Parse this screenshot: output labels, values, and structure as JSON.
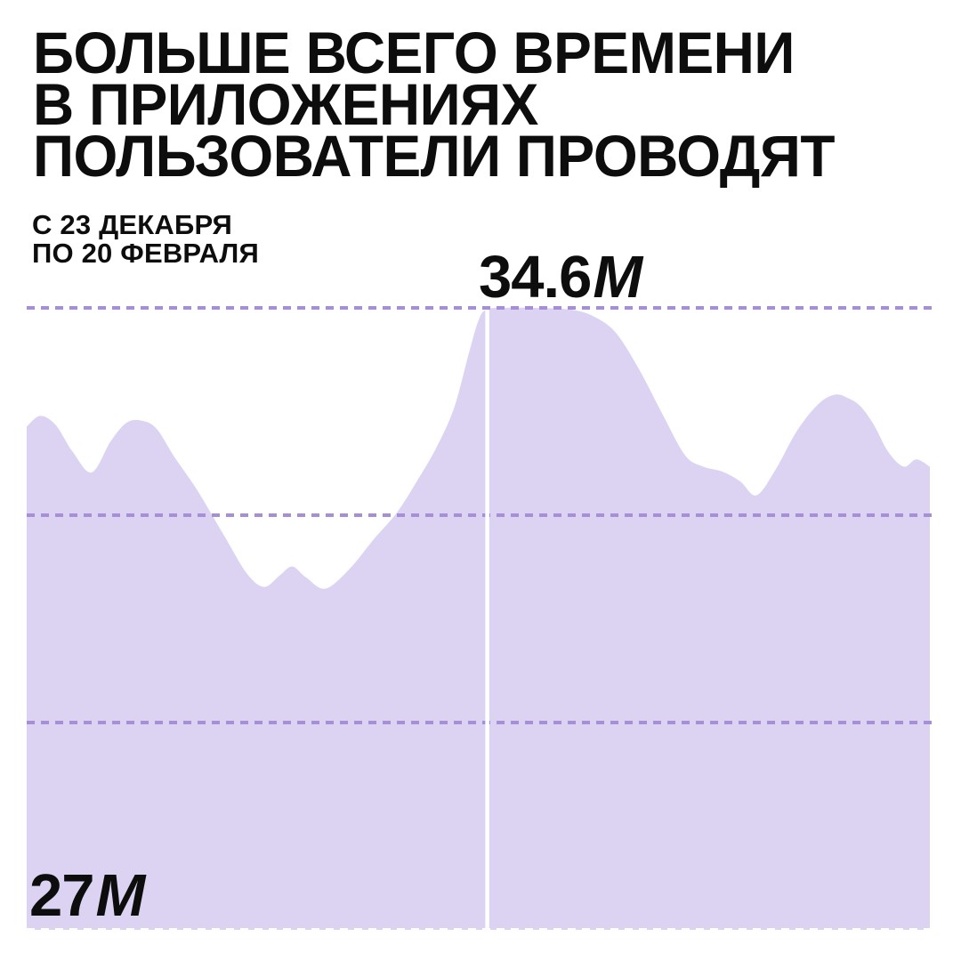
{
  "header": {
    "title_lines": [
      "БОЛЬШЕ ВСЕГО ВРЕМЕНИ",
      "В ПРИЛОЖЕНИЯХ",
      "ПОЛЬЗОВАТЕЛИ ПРОВОДЯТ"
    ],
    "subtitle_lines": [
      "С 23 ДЕКАБРЯ",
      "ПО 20 ФЕВРАЛЯ"
    ]
  },
  "chart_data": {
    "type": "area",
    "title": "БОЛЬШЕ ВСЕГО ВРЕМЕНИ В ПРИЛОЖЕНИЯХ ПОЛЬЗОВАТЕЛИ ПРОВОДЯТ",
    "period_text": "С 23 ДЕКАБРЯ ПО 20 ФЕВРАЛЯ",
    "xlabel": "",
    "ylabel": "",
    "unit": "М",
    "ylim": [
      27,
      34.6
    ],
    "grid": "dashed-horizontal",
    "gridline_values": [
      34.6,
      32.07,
      29.53,
      27
    ],
    "peak_annotation": {
      "value": "34.6",
      "unit": "М",
      "numeric": 34.6,
      "x_pct": 51.0
    },
    "min_annotation": {
      "value": "27",
      "unit": "М",
      "numeric": 27
    },
    "series": [
      {
        "x_pct": [
          0,
          1.5,
          3.2,
          5.1,
          7.2,
          9.3,
          11.1,
          12.8,
          14.4,
          16.4,
          18.9,
          21.9,
          24.4,
          26.3,
          28.0,
          29.4,
          30.9,
          33.1,
          35.9,
          38.4,
          41.0,
          43.3,
          45.3,
          47.3,
          48.9,
          50.0,
          50.9,
          52.7,
          56.2,
          60.1,
          62.7,
          65.2,
          67.8,
          70.4,
          72.9,
          74.9,
          77.0,
          79.0,
          80.8,
          82.9,
          85.3,
          87.7,
          89.5,
          90.9,
          92.3,
          93.8,
          95.4,
          97.1,
          98.5,
          100
        ],
        "values": [
          33.15,
          33.28,
          33.17,
          32.84,
          32.59,
          32.97,
          33.2,
          33.22,
          33.12,
          32.77,
          32.37,
          31.81,
          31.35,
          31.19,
          31.33,
          31.44,
          31.31,
          31.17,
          31.43,
          31.77,
          32.1,
          32.5,
          32.88,
          33.37,
          34.02,
          34.44,
          34.58,
          34.6,
          34.6,
          34.58,
          34.5,
          34.3,
          33.85,
          33.3,
          32.8,
          32.66,
          32.6,
          32.48,
          32.31,
          32.62,
          33.1,
          33.43,
          33.54,
          33.5,
          33.4,
          33.17,
          32.84,
          32.66,
          32.75,
          32.66
        ]
      }
    ]
  },
  "colors": {
    "background": "#FFFFFF",
    "area_fill": "#DCD3F3",
    "gridline": "#A78FD8",
    "bottom_gridline": "#FFFFFF",
    "peak_marker_line": "#FFFFFF",
    "text": "#0D0D0D"
  }
}
